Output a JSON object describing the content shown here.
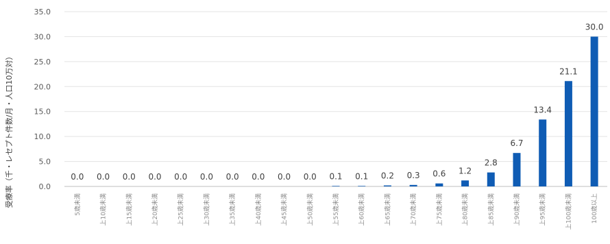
{
  "chart_data": {
    "type": "bar",
    "title": "",
    "xlabel": "",
    "ylabel": "受療率（千・レセプト件数/月・人口10万対）",
    "ylim": [
      0,
      35
    ],
    "yticks": [
      "0.0",
      "5.0",
      "10.0",
      "15.0",
      "20.0",
      "25.0",
      "30.0",
      "35.0"
    ],
    "grid": true,
    "bar_color": "#0f5cb4",
    "categories": [
      "5歳未満",
      "上10歳未満",
      "上15歳未満",
      "上20歳未満",
      "上25歳未満",
      "上30歳未満",
      "上35歳未満",
      "上40歳未満",
      "上45歳未満",
      "上50歳未満",
      "上55歳未満",
      "上60歳未満",
      "上65歳未満",
      "上70歳未満",
      "上75歳未満",
      "上80歳未満",
      "上85歳未満",
      "上90歳未満",
      "上95歳未満",
      "上100歳未満",
      "100歳以上"
    ],
    "values": [
      0.0,
      0.0,
      0.0,
      0.0,
      0.0,
      0.0,
      0.0,
      0.0,
      0.0,
      0.0,
      0.1,
      0.1,
      0.2,
      0.3,
      0.6,
      1.2,
      2.8,
      6.7,
      13.4,
      21.1,
      30.0
    ],
    "value_labels": [
      "0.0",
      "0.0",
      "0.0",
      "0.0",
      "0.0",
      "0.0",
      "0.0",
      "0.0",
      "0.0",
      "0.0",
      "0.1",
      "0.1",
      "0.2",
      "0.3",
      "0.6",
      "1.2",
      "2.8",
      "6.7",
      "13.4",
      "21.1",
      "30.0"
    ]
  }
}
